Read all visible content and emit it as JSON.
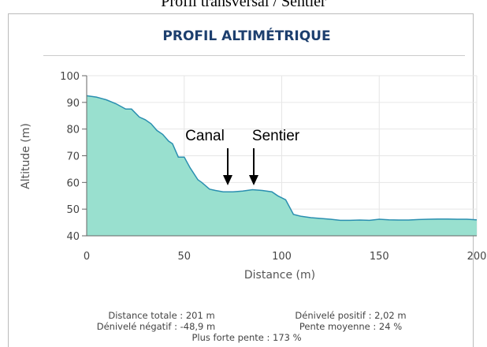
{
  "caption": "Profil transversal / Sentier",
  "chart_data": {
    "type": "area",
    "title": "PROFIL ALTIMÉTRIQUE",
    "x_label": "Distance (m)",
    "y_label": "Altitude (m)",
    "x": [
      0,
      5,
      10,
      15,
      20,
      23,
      27,
      30,
      33,
      36,
      39,
      42,
      44,
      47,
      50,
      53,
      57,
      59,
      63,
      66,
      70,
      75,
      80,
      85,
      90,
      95,
      98,
      102,
      106,
      110,
      115,
      120,
      125,
      130,
      135,
      140,
      145,
      150,
      155,
      160,
      165,
      170,
      175,
      180,
      185,
      190,
      195,
      200
    ],
    "values": [
      92.5,
      92,
      91,
      89.5,
      87.5,
      87.5,
      84.5,
      83.5,
      82,
      79.5,
      78,
      75.5,
      74.5,
      69.5,
      69.5,
      65.5,
      61,
      60,
      57.5,
      57,
      56.5,
      56.5,
      56.8,
      57.3,
      57,
      56.5,
      55,
      53.5,
      48,
      47.3,
      46.8,
      46.5,
      46.2,
      45.8,
      45.8,
      45.9,
      45.8,
      46.2,
      46,
      45.9,
      45.9,
      46.1,
      46.2,
      46.3,
      46.3,
      46.2,
      46.2,
      46
    ],
    "color": "#99e0cf",
    "line_color": "#2a8fb0",
    "xlim": [
      0,
      200
    ],
    "ylim": [
      40,
      100
    ],
    "xticks": [
      0,
      50,
      100,
      150,
      200
    ],
    "yticks": [
      40,
      50,
      60,
      70,
      80,
      90,
      100
    ],
    "grid": true,
    "annotations": [
      "Canal",
      "Sentier"
    ],
    "stats": [
      "Distance totale : 201 m",
      "Dénivelé positif : 2,02 m",
      "Dénivelé négatif : -48,9 m",
      "Pente moyenne : 24 %",
      "Plus forte pente : 173 %"
    ]
  }
}
